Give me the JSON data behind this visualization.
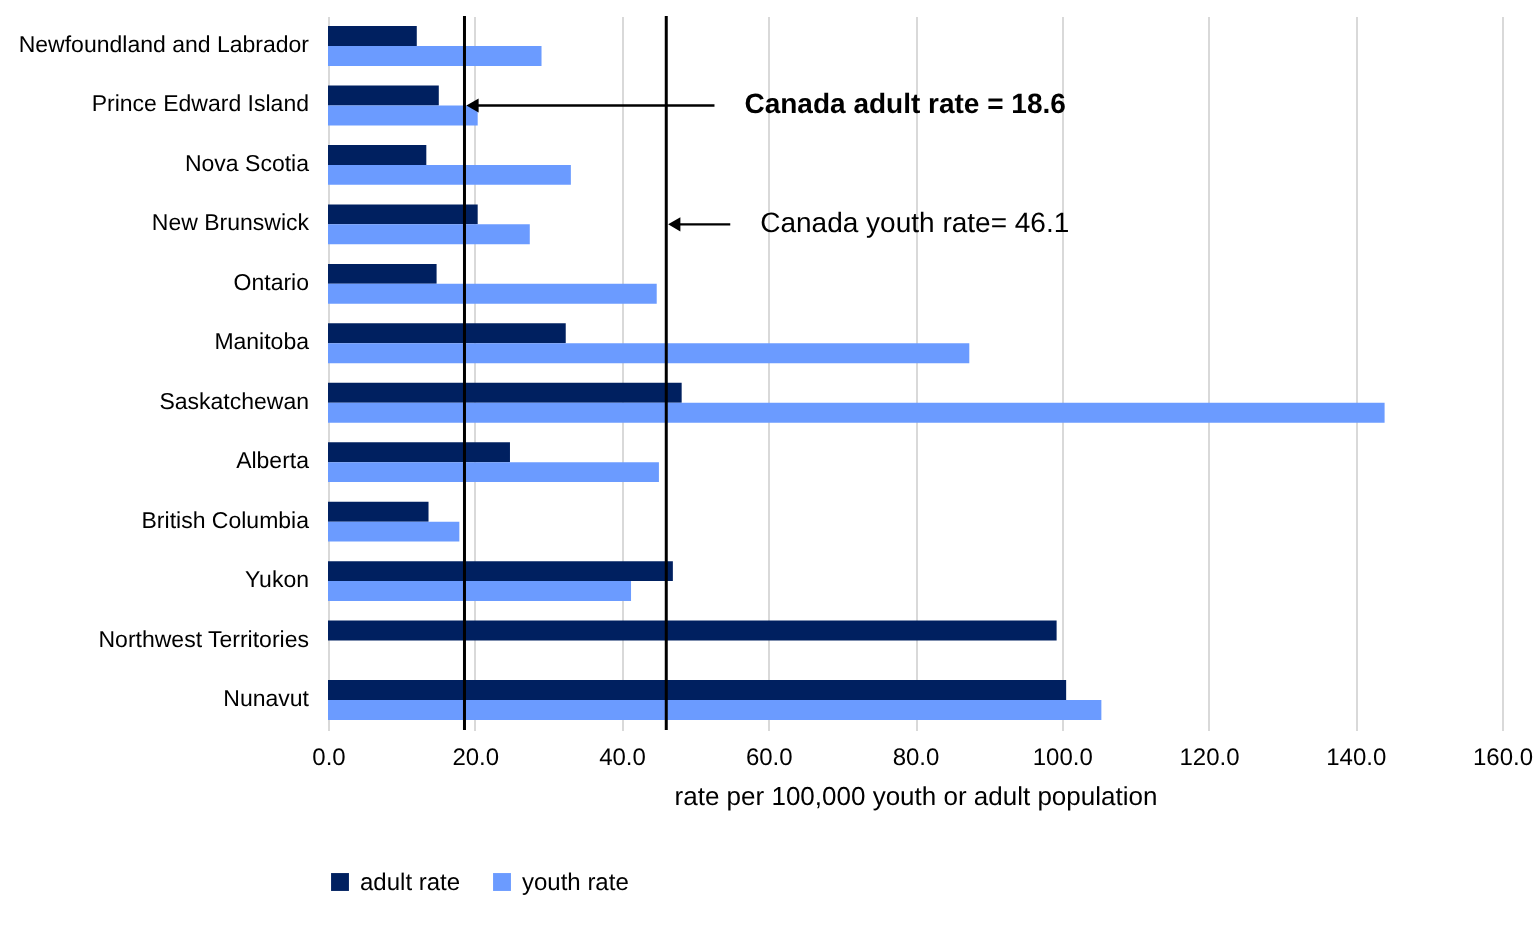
{
  "chart_data": {
    "type": "bar",
    "orientation": "horizontal",
    "xlabel": "rate per 100,000 youth or adult population",
    "categories": [
      "Newfoundland and Labrador",
      "Prince Edward Island",
      "Nova Scotia",
      "New Brunswick",
      "Ontario",
      "Manitoba",
      "Saskatchewan",
      "Alberta",
      "British Columbia",
      "Yukon",
      "Northwest Territories",
      "Nunavut"
    ],
    "series": [
      {
        "name": "adult rate",
        "color": "#002060",
        "values": [
          12.1,
          15.1,
          13.4,
          20.4,
          14.8,
          32.4,
          48.2,
          24.8,
          13.7,
          47.0,
          99.3,
          100.6
        ]
      },
      {
        "name": "youth rate",
        "color": "#6b9bff",
        "values": [
          29.1,
          20.4,
          33.1,
          27.5,
          44.8,
          87.4,
          144.0,
          45.1,
          17.9,
          41.3,
          null,
          105.4
        ]
      }
    ],
    "xlim": [
      0,
      160
    ],
    "xticks": [
      {
        "value": 0,
        "label": "0.0"
      },
      {
        "value": 20,
        "label": "20.0"
      },
      {
        "value": 40,
        "label": "40.0"
      },
      {
        "value": 60,
        "label": "60.0"
      },
      {
        "value": 80,
        "label": "80.0"
      },
      {
        "value": 100,
        "label": "100.0"
      },
      {
        "value": 120,
        "label": "120.0"
      },
      {
        "value": 140,
        "label": "140.0"
      },
      {
        "value": 160,
        "label": "160.0"
      }
    ],
    "grid": "x",
    "legend": "bottom",
    "ref_lines": [
      {
        "axis": "x",
        "value": 18.6,
        "color": "#000000"
      },
      {
        "axis": "x",
        "value": 46.1,
        "color": "#000000"
      }
    ],
    "annotations": [
      {
        "text": "Canada adult rate = 18.6",
        "x": 18.6,
        "y": "Prince Edward Island"
      },
      {
        "text": "Canada youth rate= 46.1",
        "x": 46.1,
        "y": "New Brunswick"
      }
    ]
  }
}
